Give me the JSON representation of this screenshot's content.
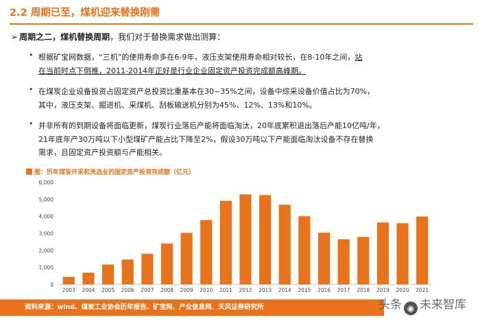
{
  "header": {
    "title": "2.2 周期已至，煤机迎来替换刚需"
  },
  "section": {
    "arrow": "➢",
    "subtitle_bold": "周期之二，煤机替换周期",
    "subtitle_rest": "，我们对于替换需求做出测算："
  },
  "bullets": [
    {
      "dot": "•",
      "line1a": "根据矿宝网数据，“三机”的使用寿命多在6-9年，液压支架使用寿命相对较长，在8-10年之间，",
      "line1b": "站",
      "line2": "在当前时点下倒推，2011-2014年正好是行业企业固定资产投资完成额高峰期。"
    },
    {
      "dot": "•",
      "line1": "在煤炭企业设备投资占固定资产总投资比重基本在30~35%之间，设备中综采设备价值占比为70%，",
      "line2": "其中，液压支架、掘进机、采煤机、刮板输送机分别为45%、12%、13%和10%。"
    },
    {
      "dot": "•",
      "line1": "并非所有的到期设备将面临更新，煤炭行业落后产能将面临淘汰，20年底累积退出落后产能10亿吨/年，",
      "line2": "21年底年产30万吨以下小型煤矿产能占比下降至2%，假设30万吨以下产能面临淘汰设备不存在替换",
      "line3": "需求，且固定资产投资额与产能相关。"
    }
  ],
  "chart_title": "图：历年煤炭开采和洗选业的固定资产投资完成额（亿元）",
  "chart_data": {
    "type": "bar",
    "title": "图：历年煤炭开采和洗选业的固定资产投资完成额（亿元）",
    "categories": [
      "2003",
      "2004",
      "2005",
      "2006",
      "2007",
      "2008",
      "2009",
      "2010",
      "2011",
      "2012",
      "2013",
      "2014",
      "2015",
      "2016",
      "2017",
      "2018",
      "2019",
      "2020",
      "2021"
    ],
    "values": [
      440,
      690,
      1160,
      1460,
      1800,
      2400,
      3030,
      3780,
      4910,
      5290,
      5250,
      4680,
      4010,
      3040,
      2650,
      2790,
      3640,
      3600,
      3990
    ],
    "yticks": [
      "0",
      "1,000",
      "2,000",
      "3,000",
      "4,000",
      "5,000",
      "6,000"
    ],
    "ylim": [
      0,
      6000
    ],
    "grid": false,
    "bar_color": "#e8731a"
  },
  "footer": {
    "source": "资料来源：wind、煤炭工业协会历年报告、矿宝网、产业信息网、天风证券研究所"
  },
  "watermark": {
    "text_left": "头条",
    "logo_glyph": "◉",
    "text_right": "未来智库"
  }
}
